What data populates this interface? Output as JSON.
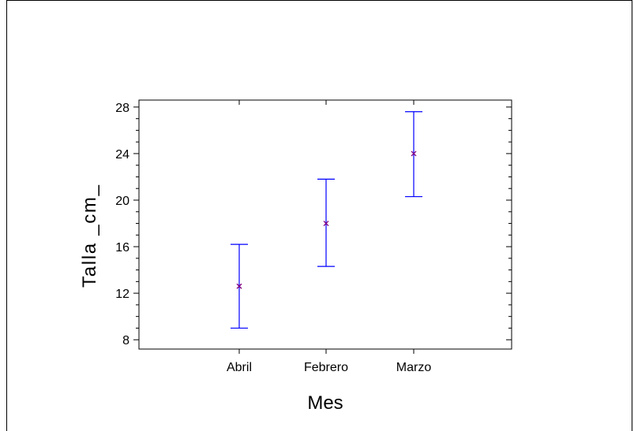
{
  "chart_data": {
    "type": "interval",
    "xlabel": "Mes",
    "ylabel": "Talla _cm_",
    "categories": [
      "Abril",
      "Febrero",
      "Marzo"
    ],
    "means": [
      12.6,
      18.0,
      24.0
    ],
    "lower": [
      9.0,
      14.3,
      20.3
    ],
    "upper": [
      16.2,
      21.8,
      27.6
    ],
    "ylim": [
      7.2,
      28.6
    ],
    "yticks": [
      8,
      12,
      16,
      20,
      24,
      28
    ],
    "grid": false,
    "interval_color": "#0000ff",
    "mean_marker_color": "#800080"
  }
}
